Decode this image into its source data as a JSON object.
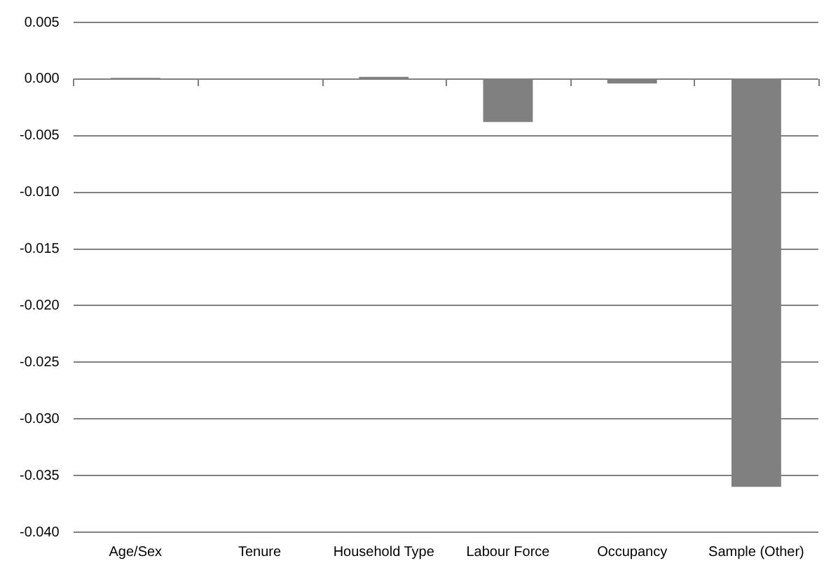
{
  "chart_data": {
    "type": "bar",
    "categories": [
      "Age/Sex",
      "Tenure",
      "Household Type",
      "Labour Force",
      "Occupancy",
      "Sample (Other)"
    ],
    "values": [
      0.0001,
      0,
      0.0002,
      -0.0038,
      -0.0004,
      -0.036
    ],
    "color": "#808080",
    "ylim": [
      -0.04,
      0.005
    ],
    "yticks": [
      0.005,
      {
        "value": 0,
        "label": "0.000"
      },
      -0.005,
      {
        "value": -0.01,
        "label": "-0.010"
      },
      -0.015,
      {
        "value": -0.02,
        "label": "-0.020"
      },
      -0.025,
      {
        "value": -0.03,
        "label": "-0.030"
      },
      -0.035,
      {
        "value": -0.04,
        "label": "-0.040"
      }
    ],
    "grid": "y",
    "legend": false
  }
}
